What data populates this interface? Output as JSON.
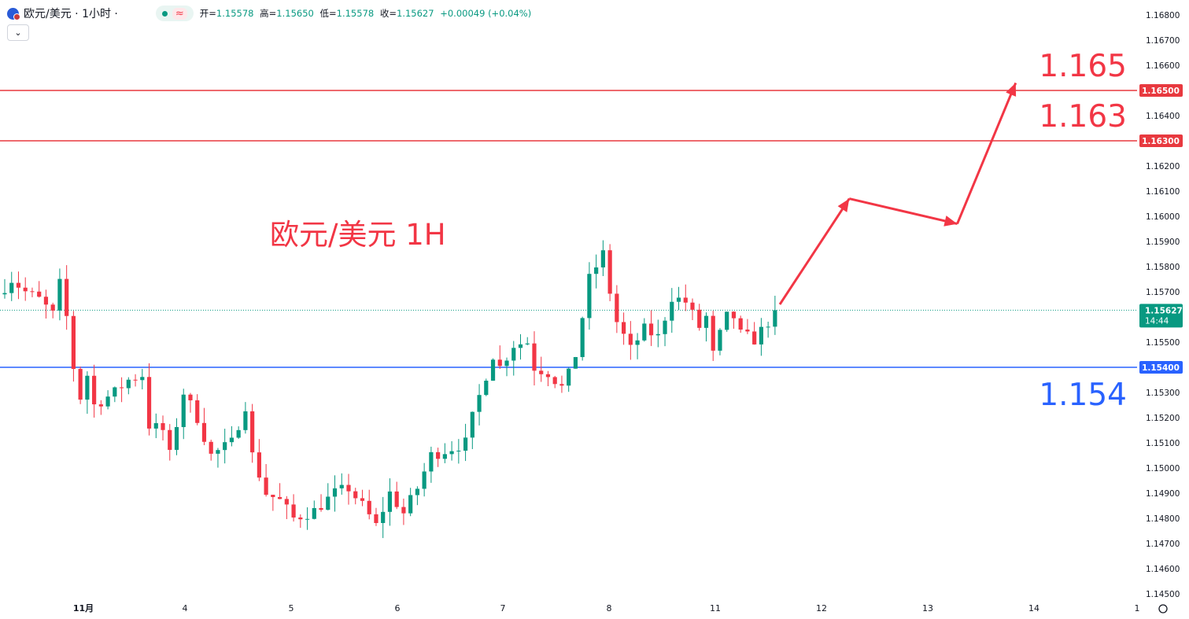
{
  "header": {
    "symbol_title": "欧元/美元 · 1小时 ·",
    "ohlc": [
      {
        "label": "开=",
        "value": "1.15578"
      },
      {
        "label": "高=",
        "value": "1.15650"
      },
      {
        "label": "低=",
        "value": "1.15578"
      },
      {
        "label": "收=",
        "value": "1.15627"
      }
    ],
    "change": "+0.00049 (+0.04%)",
    "collapse_icon": "chevron-down-icon"
  },
  "colors": {
    "up": "#089981",
    "down": "#f23645",
    "resistance": "#e8393f",
    "support": "#2962ff",
    "annotation_red": "#f23645",
    "annotation_blue": "#2962ff",
    "axis_text": "#131722"
  },
  "chart_data": {
    "type": "candlestick",
    "title": "欧元/美元 1H",
    "ylim": [
      1.145,
      1.169
    ],
    "y_ticks": [
      "1.16800",
      "1.16700",
      "1.16600",
      "1.16500",
      "1.16400",
      "1.16300",
      "1.16200",
      "1.16100",
      "1.16000",
      "1.15900",
      "1.15800",
      "1.15700",
      "1.15600",
      "1.15500",
      "1.15400",
      "1.15300",
      "1.15200",
      "1.15100",
      "1.15000",
      "1.14900",
      "1.14800",
      "1.14700",
      "1.14600",
      "1.14500"
    ],
    "x_ticks": [
      "11月",
      "4",
      "5",
      "6",
      "7",
      "8",
      "11",
      "12",
      "13",
      "14",
      "1"
    ],
    "current_price": {
      "value": 1.15627,
      "label": "1.15627",
      "countdown": "14:44"
    },
    "horizontal_levels": [
      {
        "value": 1.165,
        "axis_label": "1.16500",
        "annotation": "1.165",
        "kind": "resistance"
      },
      {
        "value": 1.163,
        "axis_label": "1.16300",
        "annotation": "1.163",
        "kind": "resistance"
      },
      {
        "value": 1.154,
        "axis_label": "1.15400",
        "annotation": "1.154",
        "kind": "support"
      }
    ],
    "projection_path": [
      {
        "bar": 112.7,
        "price": 1.1565
      },
      {
        "bar": 122.8,
        "price": 1.1607
      },
      {
        "bar": 138.5,
        "price": 1.1597
      },
      {
        "bar": 147.0,
        "price": 1.1653
      }
    ],
    "path_points": [
      {
        "bar": 0,
        "price": 1.1569
      },
      {
        "bar": 2,
        "price": 1.1575
      },
      {
        "bar": 4,
        "price": 1.157
      },
      {
        "bar": 6,
        "price": 1.1567
      },
      {
        "bar": 8,
        "price": 1.1561
      },
      {
        "bar": 9,
        "price": 1.1573
      },
      {
        "bar": 10,
        "price": 1.156
      },
      {
        "bar": 11,
        "price": 1.154
      },
      {
        "bar": 12,
        "price": 1.1528
      },
      {
        "bar": 13,
        "price": 1.1537
      },
      {
        "bar": 14,
        "price": 1.1525
      },
      {
        "bar": 17,
        "price": 1.153
      },
      {
        "bar": 19,
        "price": 1.1535
      },
      {
        "bar": 21,
        "price": 1.1537
      },
      {
        "bar": 22,
        "price": 1.1517
      },
      {
        "bar": 24,
        "price": 1.1515
      },
      {
        "bar": 25,
        "price": 1.1505
      },
      {
        "bar": 27,
        "price": 1.153
      },
      {
        "bar": 29,
        "price": 1.152
      },
      {
        "bar": 31,
        "price": 1.1505
      },
      {
        "bar": 34,
        "price": 1.151
      },
      {
        "bar": 36,
        "price": 1.1525
      },
      {
        "bar": 37,
        "price": 1.1505
      },
      {
        "bar": 39,
        "price": 1.149
      },
      {
        "bar": 41,
        "price": 1.1487
      },
      {
        "bar": 43,
        "price": 1.148
      },
      {
        "bar": 46,
        "price": 1.1483
      },
      {
        "bar": 49,
        "price": 1.149
      },
      {
        "bar": 51,
        "price": 1.1492
      },
      {
        "bar": 53,
        "price": 1.1485
      },
      {
        "bar": 55,
        "price": 1.1477
      },
      {
        "bar": 57,
        "price": 1.149
      },
      {
        "bar": 59,
        "price": 1.1482
      },
      {
        "bar": 61,
        "price": 1.1492
      },
      {
        "bar": 63,
        "price": 1.1505
      },
      {
        "bar": 66,
        "price": 1.1508
      },
      {
        "bar": 68,
        "price": 1.151
      },
      {
        "bar": 69,
        "price": 1.152
      },
      {
        "bar": 71,
        "price": 1.1537
      },
      {
        "bar": 72,
        "price": 1.1545
      },
      {
        "bar": 73,
        "price": 1.154
      },
      {
        "bar": 75,
        "price": 1.1549
      },
      {
        "bar": 77,
        "price": 1.155
      },
      {
        "bar": 78,
        "price": 1.154
      },
      {
        "bar": 80,
        "price": 1.1538
      },
      {
        "bar": 82,
        "price": 1.1532
      },
      {
        "bar": 83,
        "price": 1.1537
      },
      {
        "bar": 84,
        "price": 1.1545
      },
      {
        "bar": 86,
        "price": 1.1575
      },
      {
        "bar": 88,
        "price": 1.1585
      },
      {
        "bar": 89,
        "price": 1.157
      },
      {
        "bar": 90,
        "price": 1.1558
      },
      {
        "bar": 92,
        "price": 1.1547
      },
      {
        "bar": 94,
        "price": 1.1555
      },
      {
        "bar": 96,
        "price": 1.1552
      },
      {
        "bar": 98,
        "price": 1.1568
      },
      {
        "bar": 100,
        "price": 1.1566
      },
      {
        "bar": 102,
        "price": 1.1556
      },
      {
        "bar": 103,
        "price": 1.156
      },
      {
        "bar": 104,
        "price": 1.1545
      },
      {
        "bar": 105,
        "price": 1.1553
      },
      {
        "bar": 106,
        "price": 1.156
      },
      {
        "bar": 107,
        "price": 1.156
      },
      {
        "bar": 108,
        "price": 1.1553
      },
      {
        "bar": 110,
        "price": 1.1551
      },
      {
        "bar": 112,
        "price": 1.1558
      },
      {
        "bar": 112.7,
        "price": 1.1563
      }
    ],
    "bar_count": 113,
    "grid": false,
    "watermark": "欧元/美元 1H"
  }
}
